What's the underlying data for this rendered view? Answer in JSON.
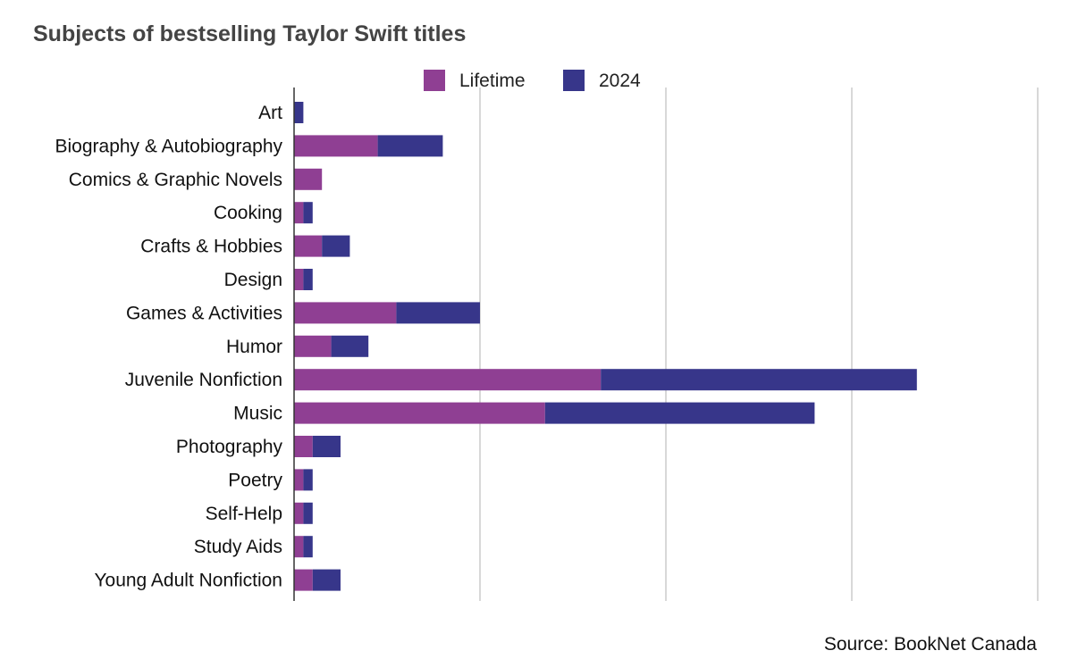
{
  "chart_data": {
    "type": "bar",
    "orientation": "horizontal",
    "stacked": true,
    "title": "Subjects of bestselling Taylor Swift titles",
    "source": "Source: BookNet Canada",
    "categories": [
      "Art",
      "Biography & Autobiography",
      "Comics & Graphic Novels",
      "Cooking",
      "Crafts & Hobbies",
      "Design",
      "Games & Activities",
      "Humor",
      "Juvenile Nonfiction",
      "Music",
      "Photography",
      "Poetry",
      "Self-Help",
      "Study Aids",
      "Young Adult Nonfiction"
    ],
    "series": [
      {
        "name": "Lifetime",
        "color": "#8f3f93",
        "values": [
          0,
          9,
          3,
          1,
          3,
          1,
          11,
          4,
          33,
          27,
          2,
          1,
          1,
          1,
          2
        ]
      },
      {
        "name": "2024",
        "color": "#37368a",
        "values": [
          1,
          7,
          0,
          1,
          3,
          1,
          9,
          4,
          34,
          29,
          3,
          1,
          1,
          1,
          3
        ]
      }
    ],
    "xlim": [
      0,
      80
    ],
    "grid": true,
    "legend_position": "top"
  }
}
